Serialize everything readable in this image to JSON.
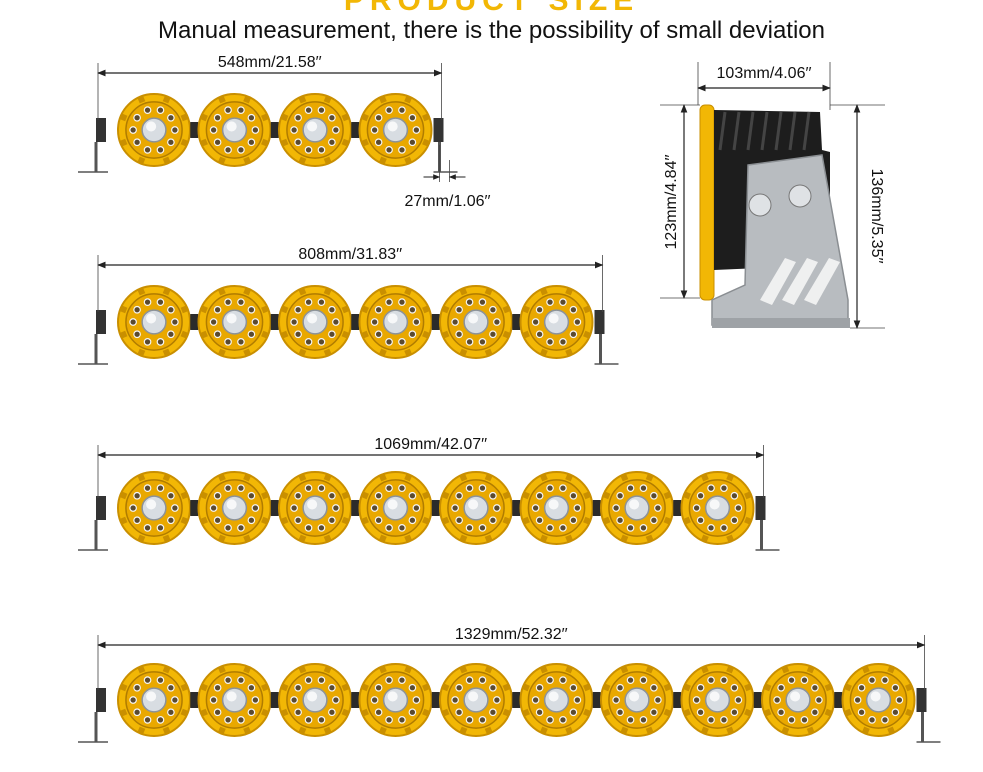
{
  "header": {
    "title": "PRODUCT SIZE",
    "subtitle": "Manual measurement, there is the possibility of small deviation"
  },
  "bars": [
    {
      "pods": 4,
      "length_label": "548mm/21.58′′",
      "foot_label": "27mm/1.06′′"
    },
    {
      "pods": 6,
      "length_label": "808mm/31.83′′"
    },
    {
      "pods": 8,
      "length_label": "1069mm/42.07′′"
    },
    {
      "pods": 10,
      "length_label": "1329mm/52.32′′"
    }
  ],
  "side_view": {
    "depth_label": "103mm/4.06′′",
    "height_label": "123mm/4.84′′",
    "total_height_label": "136mm/5.35′′"
  },
  "colors": {
    "housing_yellow": "#f2b705",
    "housing_yellow_dark": "#c98f00",
    "lens_silver": "#d8dde2",
    "bracket_silver": "#b8bcc0",
    "dimension_line": "#222222"
  }
}
